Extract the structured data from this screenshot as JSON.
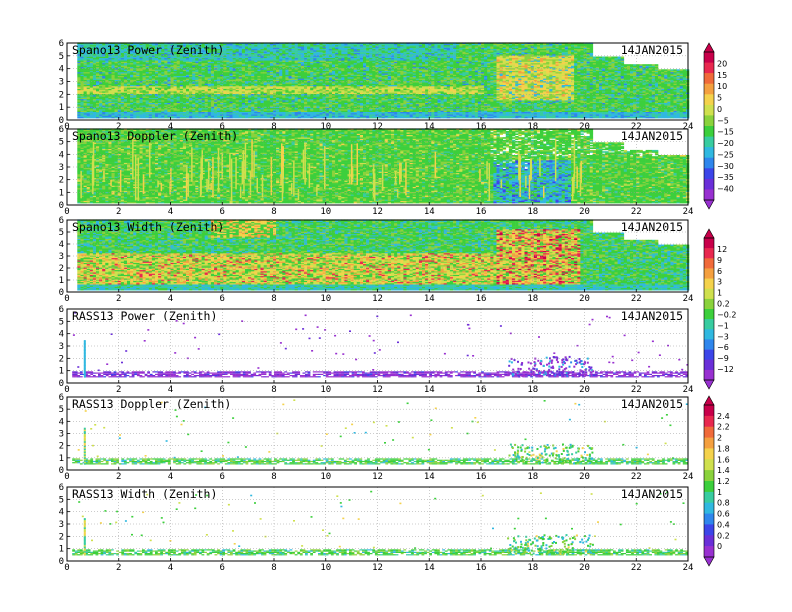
{
  "chart_data": {
    "type": "heatmap",
    "date": "14JAN2015",
    "xlim": [
      0,
      24
    ],
    "x_ticks": [
      "0",
      "2",
      "4",
      "6",
      "8",
      "10",
      "12",
      "14",
      "16",
      "18",
      "20",
      "22",
      "24"
    ],
    "panels": [
      {
        "title": "Spano13 Power (Zenith)",
        "ylim": [
          0,
          6
        ],
        "y_ticks": [
          "0",
          "1",
          "2",
          "3",
          "4",
          "5",
          "6"
        ],
        "colorbar": 0,
        "kind": "power"
      },
      {
        "title": "Spano13 Doppler (Zenith)",
        "ylim": [
          0,
          6
        ],
        "y_ticks": [
          "0",
          "1",
          "2",
          "3",
          "4",
          "5",
          "6"
        ],
        "colorbar": 0,
        "kind": "doppler"
      },
      {
        "title": "Spano13 Width (Zenith)",
        "ylim": [
          0,
          6
        ],
        "y_ticks": [
          "0",
          "1",
          "2",
          "3",
          "4",
          "5",
          "6"
        ],
        "colorbar": 1,
        "kind": "width"
      },
      {
        "title": "RASS13 Power (Zenith)",
        "ylim": [
          0,
          6
        ],
        "y_ticks": [
          "0",
          "1",
          "2",
          "3",
          "4",
          "5",
          "6"
        ],
        "colorbar": 1,
        "kind": "rass_power"
      },
      {
        "title": "RASS13 Doppler (Zenith)",
        "ylim": [
          0,
          6
        ],
        "y_ticks": [
          "0",
          "1",
          "2",
          "3",
          "4",
          "5",
          "6"
        ],
        "colorbar": 2,
        "kind": "rass"
      },
      {
        "title": "RASS13 Width (Zenith)",
        "ylim": [
          0,
          6
        ],
        "y_ticks": [
          "0",
          "1",
          "2",
          "3",
          "4",
          "5",
          "6"
        ],
        "colorbar": 2,
        "kind": "rass"
      }
    ],
    "colorbars": [
      {
        "labels": [
          "20",
          "15",
          "10",
          "5",
          "0",
          "−5",
          "−15",
          "−20",
          "−25",
          "−30",
          "−35",
          "−40"
        ],
        "colors": [
          "#c8004a",
          "#e8284f",
          "#f06a3a",
          "#f4a040",
          "#f4d24c",
          "#cfe04e",
          "#8ad23c",
          "#3ccf3c",
          "#38cca0",
          "#30b8e0",
          "#2f86ec",
          "#3c45e8",
          "#6a2fd8",
          "#9830d0"
        ]
      },
      {
        "labels": [
          "12",
          "9",
          "6",
          "3",
          "1",
          "0.2",
          "−0.2",
          "−1",
          "−3",
          "−6",
          "−9",
          "−12"
        ],
        "colors": [
          "#c8004a",
          "#e8284f",
          "#f06a3a",
          "#f4a040",
          "#f4d24c",
          "#cfe04e",
          "#8ad23c",
          "#3ccf3c",
          "#38cca0",
          "#30b8e0",
          "#2f86ec",
          "#3c45e8",
          "#6a2fd8",
          "#9830d0"
        ]
      },
      {
        "labels": [
          "2.4",
          "2.2",
          "2",
          "1.8",
          "1.6",
          "1.4",
          "1.2",
          "1",
          "0.8",
          "0.6",
          "0.4",
          "0.2",
          "0"
        ],
        "colors": [
          "#c8004a",
          "#e8284f",
          "#f06a3a",
          "#f4a040",
          "#f4d24c",
          "#cfe04e",
          "#8ad23c",
          "#3ccf3c",
          "#38cca0",
          "#30b8e0",
          "#2f86ec",
          "#3c45e8",
          "#6a2fd8",
          "#9830d0"
        ]
      }
    ]
  }
}
